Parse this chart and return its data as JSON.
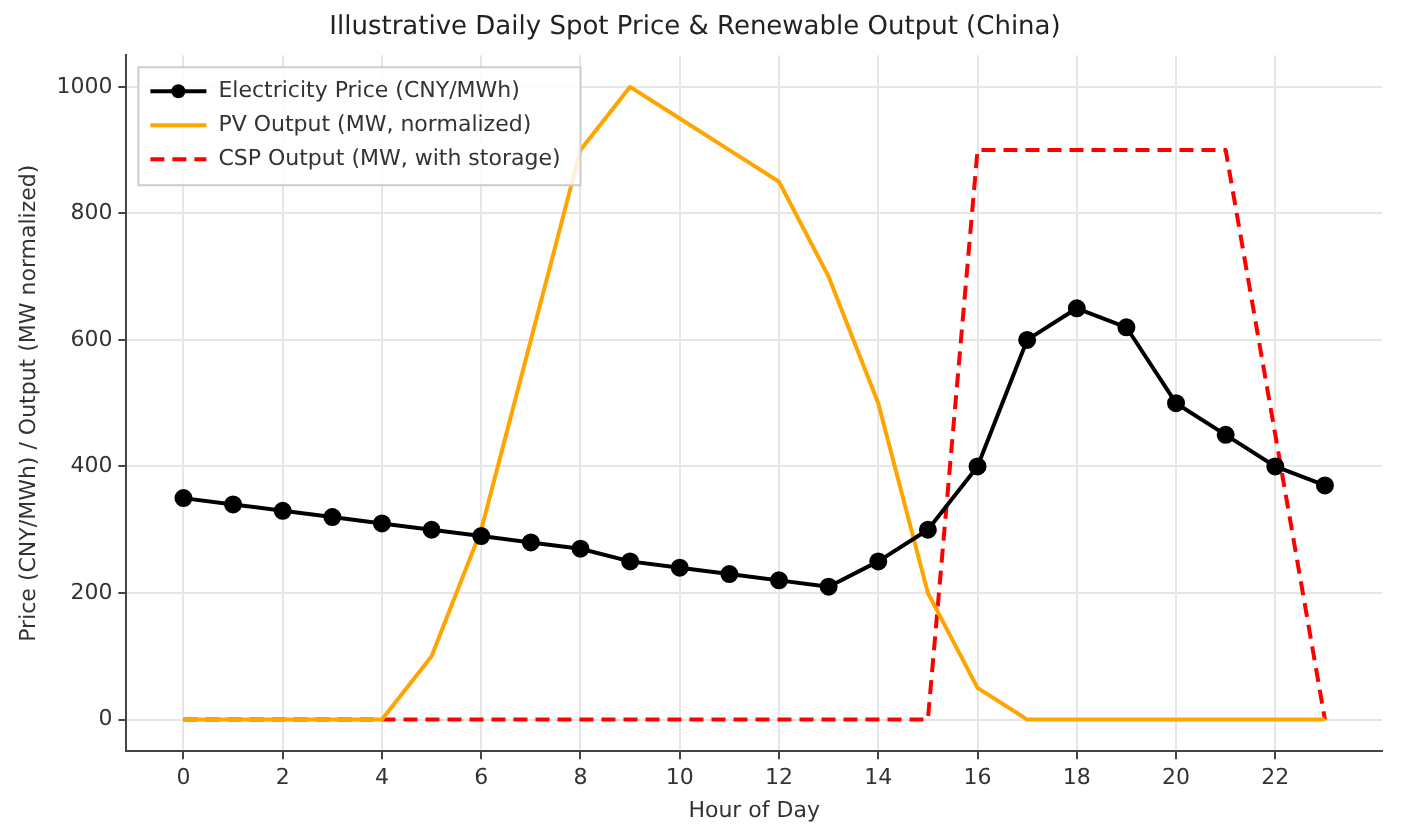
{
  "chart_data": {
    "type": "line",
    "title": "Illustrative Daily Spot Price & Renewable Output (China)",
    "xlabel": "Hour of Day",
    "ylabel": "Price (CNY/MWh) / Output (MW normalized)",
    "x": [
      0,
      1,
      2,
      3,
      4,
      5,
      6,
      7,
      8,
      9,
      10,
      11,
      12,
      13,
      14,
      15,
      16,
      17,
      18,
      19,
      20,
      21,
      22,
      23
    ],
    "series": [
      {
        "name": "Electricity Price (CNY/MWh)",
        "color": "#000000",
        "marker": "circle",
        "line_style": "solid",
        "values": [
          350,
          340,
          330,
          320,
          310,
          300,
          290,
          280,
          270,
          250,
          240,
          230,
          220,
          210,
          250,
          300,
          400,
          600,
          650,
          620,
          500,
          450,
          400,
          370
        ]
      },
      {
        "name": "PV Output (MW, normalized)",
        "color": "#ffa500",
        "marker": "none",
        "line_style": "solid",
        "values": [
          0,
          0,
          0,
          0,
          0,
          100,
          300,
          600,
          900,
          1000,
          950,
          900,
          850,
          700,
          500,
          200,
          50,
          0,
          0,
          0,
          0,
          0,
          0,
          0
        ]
      },
      {
        "name": "CSP Output (MW, with storage)",
        "color": "#ff0000",
        "marker": "none",
        "line_style": "dashed",
        "values": [
          0,
          0,
          0,
          0,
          0,
          0,
          0,
          0,
          0,
          0,
          0,
          0,
          0,
          0,
          0,
          0,
          900,
          900,
          900,
          900,
          900,
          900,
          450,
          0
        ]
      }
    ],
    "xlim": [
      -1.15,
      24.15
    ],
    "xticks": [
      0,
      2,
      4,
      6,
      8,
      10,
      12,
      14,
      16,
      18,
      20,
      22
    ],
    "ylim": [
      -50,
      1050
    ],
    "yticks": [
      0,
      200,
      400,
      600,
      800,
      1000
    ],
    "grid": true,
    "legend": "top left"
  }
}
